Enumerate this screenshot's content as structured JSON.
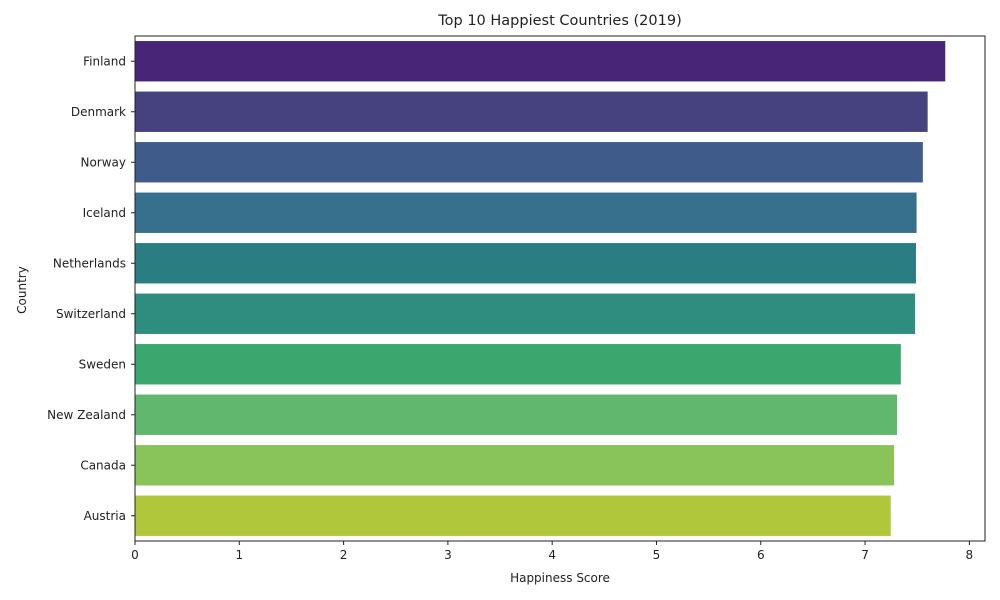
{
  "chart_data": {
    "type": "bar",
    "orientation": "horizontal",
    "title": "Top 10 Happiest Countries (2019)",
    "xlabel": "Happiness Score",
    "ylabel": "Country",
    "xlim": [
      0,
      8.15
    ],
    "xticks": [
      "0",
      "1",
      "2",
      "3",
      "4",
      "5",
      "6",
      "7",
      "8"
    ],
    "grid": false,
    "categories": [
      "Finland",
      "Denmark",
      "Norway",
      "Iceland",
      "Netherlands",
      "Switzerland",
      "Sweden",
      "New Zealand",
      "Canada",
      "Austria"
    ],
    "values": [
      7.769,
      7.6,
      7.554,
      7.494,
      7.488,
      7.48,
      7.343,
      7.307,
      7.278,
      7.246
    ],
    "colors": [
      "#482576",
      "#46427f",
      "#3e5b8a",
      "#36708d",
      "#2a7e82",
      "#2e8d7f",
      "#3aa76e",
      "#62b76e",
      "#88c45a",
      "#b1c73b"
    ]
  }
}
